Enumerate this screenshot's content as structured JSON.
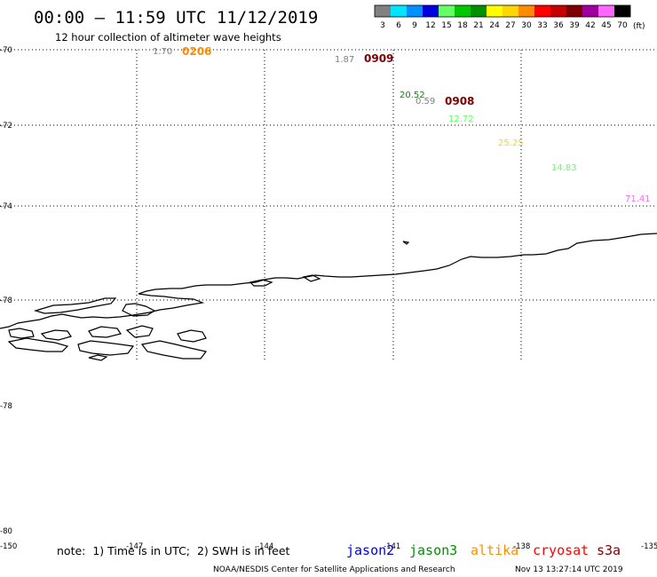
{
  "header": {
    "title": "00:00 – 11:59 UTC 11/12/2019",
    "subtitle": "12 hour collection of altimeter wave heights"
  },
  "legend": {
    "unit": "(ft)",
    "bins": [
      {
        "label": "3",
        "color": "#808080"
      },
      {
        "label": "6",
        "color": "#00e5ff"
      },
      {
        "label": "9",
        "color": "#0090ff"
      },
      {
        "label": "12",
        "color": "#0000e0"
      },
      {
        "label": "15",
        "color": "#66ff66"
      },
      {
        "label": "18",
        "color": "#00c800"
      },
      {
        "label": "21",
        "color": "#009000"
      },
      {
        "label": "24",
        "color": "#ffff00"
      },
      {
        "label": "27",
        "color": "#ffd700"
      },
      {
        "label": "30",
        "color": "#ff8c00"
      },
      {
        "label": "33",
        "color": "#ff0000"
      },
      {
        "label": "36",
        "color": "#c80000"
      },
      {
        "label": "39",
        "color": "#800000"
      },
      {
        "label": "42",
        "color": "#a000a0"
      },
      {
        "label": "45",
        "color": "#ff66ff"
      },
      {
        "label": "70",
        "color": "#000000"
      }
    ]
  },
  "map": {
    "lat_labels": [
      "-70",
      "-72",
      "-74",
      "-78",
      "-78",
      "-80"
    ],
    "lon_labels": [
      "-150",
      "-147",
      "-144",
      "-141",
      "-138",
      "-135"
    ]
  },
  "observations": [
    {
      "value": "1.70",
      "color": "#808080"
    },
    {
      "value": "0206",
      "color": "#ff8c00"
    },
    {
      "value": "1.87",
      "color": "#808080"
    },
    {
      "value": "0909",
      "color": "#800000"
    },
    {
      "value": "20.52",
      "color": "#009000"
    },
    {
      "value": "0.59",
      "color": "#808080"
    },
    {
      "value": "0908",
      "color": "#800000"
    },
    {
      "value": "12.72",
      "color": "#66ff66"
    },
    {
      "value": "25.25",
      "color": "#ffd700"
    },
    {
      "value": "14.83",
      "color": "#66ff66"
    },
    {
      "value": "71.41",
      "color": "#ff66ff"
    }
  ],
  "footer": {
    "note": "note:  1) Time is in UTC;  2) SWH is in feet",
    "satellites": [
      {
        "name": "jason2",
        "color": "#0000e0"
      },
      {
        "name": "jason3",
        "color": "#009000"
      },
      {
        "name": "altika",
        "color": "#ff8c00"
      },
      {
        "name": "cryosat",
        "color": "#ff0000"
      },
      {
        "name": "s3a",
        "color": "#800000"
      }
    ],
    "credit": "NOAA/NESDIS Center for Satellite Applications and Research",
    "timestamp": "Nov 13 13:27:14 UTC 2019"
  }
}
